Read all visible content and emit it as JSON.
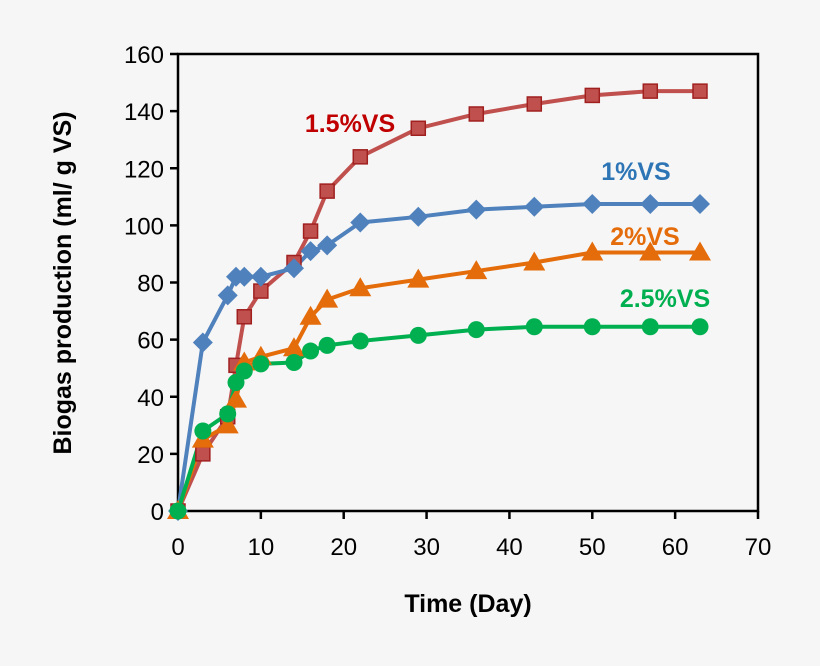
{
  "chart_data": {
    "type": "line",
    "title": "",
    "xlabel": "Time (Day)",
    "ylabel": "Biogas production  (ml/ g VS)",
    "xlim": [
      0,
      70
    ],
    "ylim": [
      0,
      160
    ],
    "xticks": [
      0,
      10,
      20,
      30,
      40,
      50,
      60,
      70
    ],
    "yticks": [
      0,
      20,
      40,
      60,
      80,
      100,
      120,
      140,
      160
    ],
    "grid": false,
    "legend": "inline labels",
    "x": [
      0,
      3,
      6,
      7,
      8,
      10,
      14,
      16,
      18,
      22,
      29,
      36,
      43,
      50,
      57,
      63
    ],
    "series": [
      {
        "name": "1.5%VS",
        "marker": "square",
        "color": "#c0504d",
        "label_color": "#c00000",
        "values": [
          0,
          20,
          33,
          51,
          68,
          77,
          87,
          98,
          112,
          124,
          134,
          139,
          142.5,
          145.5,
          147,
          147
        ]
      },
      {
        "name": "1%VS",
        "marker": "diamond",
        "color": "#4f81bd",
        "label_color": "#2e75b6",
        "values": [
          0,
          59,
          75.5,
          82,
          82,
          82,
          85,
          91,
          93,
          101,
          103,
          105.5,
          106.5,
          107.5,
          107.5,
          107.5
        ]
      },
      {
        "name": "2%VS",
        "marker": "triangle",
        "color": "#e46c0a",
        "label_color": "#e46c0a",
        "values": [
          0,
          25,
          30,
          39,
          52,
          54,
          57,
          68,
          74,
          78,
          81,
          84,
          87,
          90.5,
          90.5,
          90.5
        ]
      },
      {
        "name": "2.5%VS",
        "marker": "circle",
        "color": "#00b050",
        "label_color": "#00b050",
        "values": [
          0,
          28,
          34,
          45,
          49,
          51.5,
          52,
          56,
          58,
          59.5,
          61.5,
          63.5,
          64.5,
          64.5,
          64.5,
          64.5
        ]
      }
    ]
  }
}
